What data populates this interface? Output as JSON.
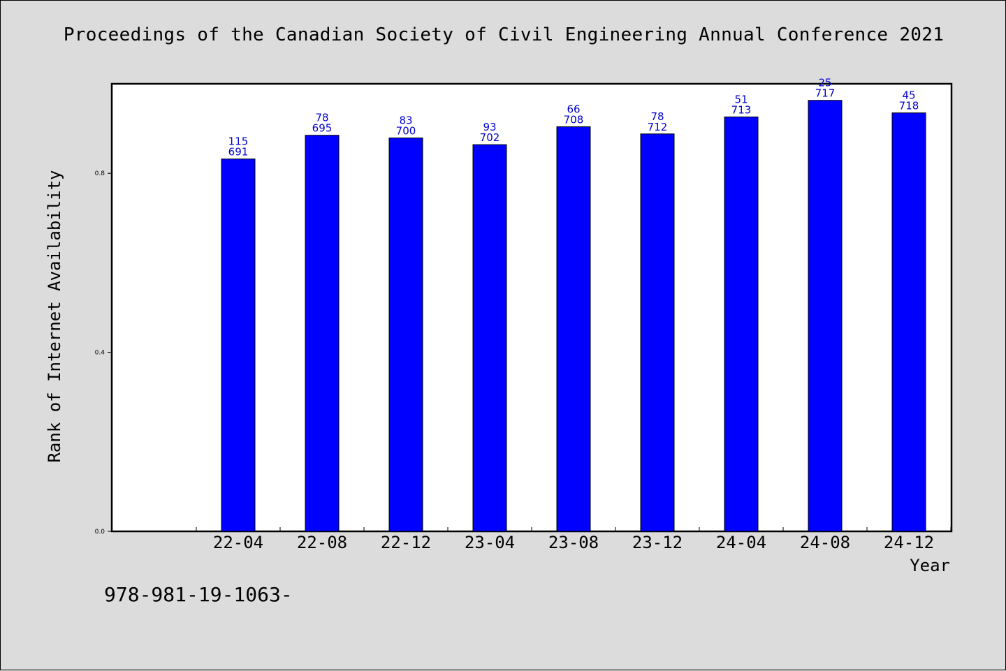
{
  "page": {
    "title": "Proceedings of the Canadian Society of Civil Engineering Annual Conference 2021",
    "footer_text": "978-981-19-1063-"
  },
  "colors": {
    "bar_fill": "#0000ff",
    "bar_stroke": "#000000",
    "label_color": "#0000cc",
    "plot_bg": "#ffffff",
    "page_bg": "#dcdcdc"
  },
  "chart_data": {
    "type": "bar",
    "title": "",
    "xlabel": "Year",
    "ylabel": "Rank of Internet Availability",
    "ylim": [
      0,
      1.0
    ],
    "yticks": [
      0.0,
      0.4,
      0.8
    ],
    "ytick_labels": [
      "0.0",
      "0.4",
      "0.8"
    ],
    "grid": false,
    "legend": "none",
    "categories": [
      "22-04",
      "22-08",
      "22-12",
      "23-04",
      "23-08",
      "23-12",
      "24-04",
      "24-08",
      "24-12"
    ],
    "values": [
      0.832,
      0.885,
      0.879,
      0.864,
      0.904,
      0.888,
      0.926,
      0.963,
      0.935
    ],
    "top_labels": [
      "115",
      "78",
      "83",
      "93",
      "66",
      "78",
      "51",
      "25",
      "45"
    ],
    "bottom_labels": [
      "691",
      "695",
      "700",
      "702",
      "708",
      "712",
      "713",
      "717",
      "718"
    ]
  }
}
